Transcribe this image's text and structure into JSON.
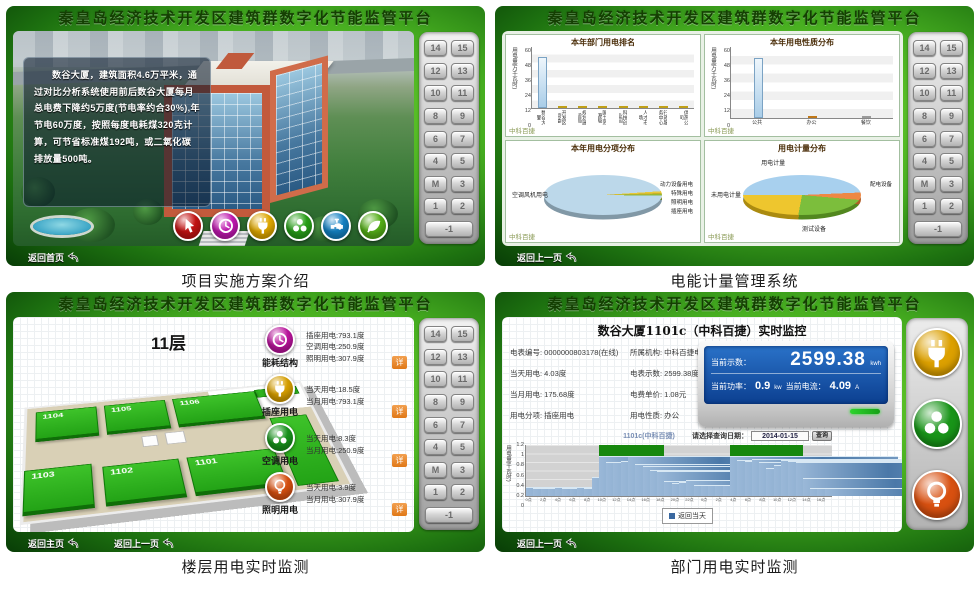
{
  "header_title": "秦皇岛经济技术开发区建筑群数字化节能监管平台",
  "captions": {
    "p1": "项目实施方案介绍",
    "p2": "电能计量管理系统",
    "p3": "楼层用电实时监测",
    "p4": "部门用电实时监测"
  },
  "nav": {
    "back_home_label": "返回首页",
    "back_main_label": "返回主页",
    "back_prev_label": "返回上一页"
  },
  "elevator": {
    "rows": [
      [
        "14",
        "15"
      ],
      [
        "12",
        "13"
      ],
      [
        "10",
        "11"
      ],
      [
        "8",
        "9"
      ],
      [
        "6",
        "7"
      ],
      [
        "4",
        "5"
      ],
      [
        "M",
        "3"
      ],
      [
        "1",
        "2"
      ]
    ],
    "basement": "-1"
  },
  "panel1": {
    "description": "数谷大厦，建筑面积4.6万平米，通过对比分析系统使用前后数谷大厦每月总电费下降约5万度(节电率约合30%),年节电60万度，按照每度电耗煤320克计算，可节省标准煤192吨，或二氧化碳排放量500吨。",
    "icons": [
      {
        "name": "hand-icon",
        "glyph": "hand",
        "color": "#c41212"
      },
      {
        "name": "clock-icon",
        "glyph": "clock",
        "color": "#c018b0"
      },
      {
        "name": "plug-icon",
        "glyph": "plug",
        "color": "#e0a800"
      },
      {
        "name": "fan-icon",
        "glyph": "fan",
        "color": "#28a018"
      },
      {
        "name": "faucet-icon",
        "glyph": "faucet",
        "color": "#1482c4"
      },
      {
        "name": "leaf-icon",
        "glyph": "leaf",
        "color": "#55b017"
      }
    ]
  },
  "panel3": {
    "floor_label": "11层",
    "rooms_top": [
      "1104",
      "1105",
      "1106"
    ],
    "rooms_bottom": [
      "1103",
      "1102",
      "1101"
    ],
    "legend": [
      {
        "name": "能耗结构",
        "glyph": "clock",
        "color": "#bc149e",
        "lines": [
          "插座用电:793.1度",
          "空调用电:250.9度",
          "照明用电:307.9度"
        ],
        "detail": "详"
      },
      {
        "name": "插座用电",
        "glyph": "plug",
        "color": "#d8a000",
        "lines": [
          "当天用电:18.5度",
          "当月用电:793.1度"
        ],
        "detail": "详"
      },
      {
        "name": "空调用电",
        "glyph": "fan",
        "color": "#18941c",
        "lines": [
          "当天用电:8.3度",
          "当月用电:250.9度"
        ],
        "detail": "详"
      },
      {
        "name": "照明用电",
        "glyph": "bulb",
        "color": "#d85010",
        "lines": [
          "当天用电:3.9度",
          "当月用电:307.9度"
        ],
        "detail": "详"
      }
    ]
  },
  "panel4": {
    "title": "数谷大厦1101c（中科百捷）实时监控",
    "fields_left": [
      [
        "电表编号:",
        "0000000803178(在线)"
      ],
      [
        "当天用电:",
        "4.03度"
      ],
      [
        "当月用电:",
        "175.68度"
      ],
      [
        "用电分项:",
        "插座用电"
      ]
    ],
    "fields_mid": [
      [
        "所属机构:",
        "中科百捷电子信息科技有限公司"
      ],
      [
        "电表示数:",
        "2599.38度"
      ],
      [
        "电费单价:",
        "1.08元"
      ],
      [
        "用电性质:",
        "办公"
      ]
    ],
    "lcd": {
      "reading_label": "当前示数：",
      "reading": "2599.38",
      "reading_unit": "kwh",
      "power_label": "当前功率：",
      "power": "0.9",
      "power_unit": "kw",
      "current_label": "当前电流：",
      "current": "4.09",
      "current_unit": "A"
    },
    "date_label": "请选择查询日期：",
    "date_value": "2014-01-15",
    "query_label": "查询",
    "legend_label": "返回当天",
    "sidebar_icons": [
      {
        "name": "plug-icon",
        "glyph": "plug",
        "color": "#dca000"
      },
      {
        "name": "fan-icon",
        "glyph": "fan",
        "color": "#189418"
      },
      {
        "name": "bulb-icon",
        "glyph": "bulb",
        "color": "#d85010"
      }
    ]
  },
  "chart_data": [
    {
      "id": "dept_rank",
      "type": "bar",
      "title": "本年部门用电排名",
      "ylabel": "用电量(万千瓦时)",
      "ylim": [
        0,
        60
      ],
      "yticks": [
        0,
        12,
        24,
        36,
        48,
        60
      ],
      "categories": [
        "数谷大厦",
        "开发区管委",
        "规划建设局",
        "国土资源局",
        "科技创业园",
        "人才市场",
        "行政服务中心",
        "供热公司"
      ],
      "values": [
        50.4,
        0.9,
        0.8,
        0.7,
        0.6,
        0.5,
        0.5,
        0.6
      ],
      "bar_colors": [
        "blue",
        "yellow",
        "yellow",
        "yellow",
        "yellow",
        "yellow",
        "yellow",
        "yellow"
      ],
      "vertical_labels": true,
      "watermark": "中科百捷"
    },
    {
      "id": "usage_nature",
      "type": "bar",
      "title": "本年用电性质分布",
      "ylabel": "用电量(万千瓦时)",
      "ylim": [
        0,
        60
      ],
      "yticks": [
        0,
        12,
        24,
        36,
        48,
        60
      ],
      "categories": [
        "公共",
        "办公",
        "餐饮"
      ],
      "values": [
        50.4,
        2.1,
        0.7
      ],
      "bar_colors": [
        "blue",
        "orange",
        "gray"
      ],
      "vertical_labels": false,
      "watermark": "中科百捷"
    },
    {
      "id": "subitem_pie",
      "type": "pie",
      "title": "本年用电分项分布",
      "start_angle": 92,
      "slices": [
        {
          "label": "空调风机用电",
          "value": 96.4,
          "color": "#bcd8ea",
          "side": "left"
        },
        {
          "label": "动力设备用电",
          "value": 1.4,
          "color": "#e8c838",
          "side": "right"
        },
        {
          "label": "特殊用电",
          "value": 0.9,
          "color": "#c8b028",
          "side": "right"
        },
        {
          "label": "照明用电",
          "value": 0.7,
          "color": "#9ab830",
          "side": "right"
        },
        {
          "label": "插座用电",
          "value": 0.6,
          "color": "#88b840",
          "side": "right"
        }
      ],
      "watermark": "中科百捷"
    },
    {
      "id": "metering_pie",
      "type": "pie",
      "title": "用电计量分布",
      "start_angle": 270,
      "slices": [
        {
          "label": "用电计量",
          "value": 48,
          "color": "#a8d0ee",
          "side": "top"
        },
        {
          "label": "配电设备",
          "value": 6,
          "color": "#ee8844",
          "side": "right"
        },
        {
          "label": "测试设备",
          "value": 22,
          "color": "#7cbe3c",
          "side": "bottom"
        },
        {
          "label": "未用电计量",
          "value": 24,
          "color": "#eec62e",
          "side": "left"
        }
      ],
      "watermark": "中科百捷"
    },
    {
      "id": "hourly",
      "type": "bar",
      "title": "1101c(中科百捷)",
      "ylabel": "用电量(千瓦时)",
      "ylim": [
        0,
        1.2
      ],
      "yticks": [
        0,
        0.2,
        0.4,
        0.6,
        0.8,
        1,
        1.2
      ],
      "x": [
        "0点",
        "",
        "2点",
        "",
        "4点",
        "",
        "6点",
        "",
        "8点",
        "",
        "10点",
        "",
        "12点",
        "",
        "14点",
        "",
        "16点",
        "",
        "18点",
        "",
        "20点",
        "",
        "22点",
        "",
        "0点",
        "",
        "2点",
        "",
        "4点",
        "",
        "6点",
        "",
        "8点",
        "",
        "10点",
        "",
        "12点",
        "",
        "14点",
        "",
        "16点",
        ""
      ],
      "values": [
        0.21,
        0.2,
        0.2,
        0.2,
        0.21,
        0.2,
        0.2,
        0.21,
        0.2,
        0.45,
        0.95,
        0.8,
        0.8,
        0.83,
        0.95,
        0.75,
        0.7,
        0.62,
        0.6,
        0.35,
        0.3,
        0.33,
        0.38,
        0.25,
        0.25,
        0.26,
        0.25,
        0.25,
        0.93,
        0.85,
        0.82,
        0.88,
        0.8,
        0.65,
        0.72,
        0.85,
        0.83,
        0.8,
        0.42,
        0.18,
        0.18,
        0.19
      ],
      "highlight_bands": [
        [
          10,
          18
        ],
        [
          28,
          37
        ]
      ],
      "legend": "返回当天"
    }
  ]
}
